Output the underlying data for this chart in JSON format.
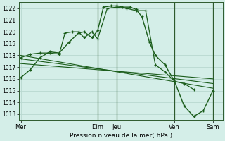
{
  "background_color": "#d4eee8",
  "grid_color": "#b8d8d0",
  "line_color": "#1a5c1a",
  "xlabel": "Pression niveau de la mer( hPa )",
  "ylim": [
    1012.5,
    1022.5
  ],
  "yticks": [
    1013,
    1014,
    1015,
    1016,
    1017,
    1018,
    1019,
    1020,
    1021,
    1022
  ],
  "day_labels": [
    "Mer",
    "Dim",
    "Jeu",
    "Ven",
    "Sam"
  ],
  "day_positions": [
    0,
    4.0,
    5.0,
    8.0,
    10.0
  ],
  "xlim": [
    -0.1,
    10.5
  ],
  "main_x": [
    0.0,
    0.5,
    1.0,
    1.5,
    2.0,
    2.5,
    3.0,
    3.3,
    3.7,
    4.0,
    4.3,
    4.7,
    5.0,
    5.3,
    5.7,
    6.0,
    6.3,
    6.7,
    7.0,
    7.5,
    8.0,
    8.5,
    9.0,
    9.5,
    10.0
  ],
  "main_y": [
    1016.1,
    1016.8,
    1017.8,
    1018.3,
    1018.2,
    1019.1,
    1019.9,
    1020.0,
    1019.5,
    1020.1,
    1022.1,
    1022.2,
    1022.2,
    1022.1,
    1022.1,
    1021.9,
    1021.3,
    1019.1,
    1018.0,
    1017.2,
    1015.8,
    1013.7,
    1012.8,
    1013.3,
    1015.0
  ],
  "sec_x": [
    0.0,
    0.5,
    1.0,
    1.5,
    2.0,
    2.3,
    2.7,
    3.0,
    3.3,
    3.7,
    4.0,
    4.5,
    5.0,
    5.5,
    6.0,
    6.5,
    7.0,
    7.5,
    8.0,
    8.5,
    9.0
  ],
  "sec_y": [
    1017.8,
    1018.1,
    1018.2,
    1018.2,
    1018.1,
    1019.9,
    1020.0,
    1020.0,
    1019.5,
    1020.0,
    1019.4,
    1022.0,
    1022.1,
    1022.0,
    1021.8,
    1021.8,
    1017.2,
    1016.6,
    1015.8,
    1015.6,
    1015.1
  ],
  "trend1_x": [
    0.0,
    10.0
  ],
  "trend1_y": [
    1018.0,
    1015.2
  ],
  "trend2_x": [
    0.0,
    10.0
  ],
  "trend2_y": [
    1017.7,
    1015.6
  ],
  "trend3_x": [
    0.0,
    10.0
  ],
  "trend3_y": [
    1017.3,
    1016.0
  ]
}
